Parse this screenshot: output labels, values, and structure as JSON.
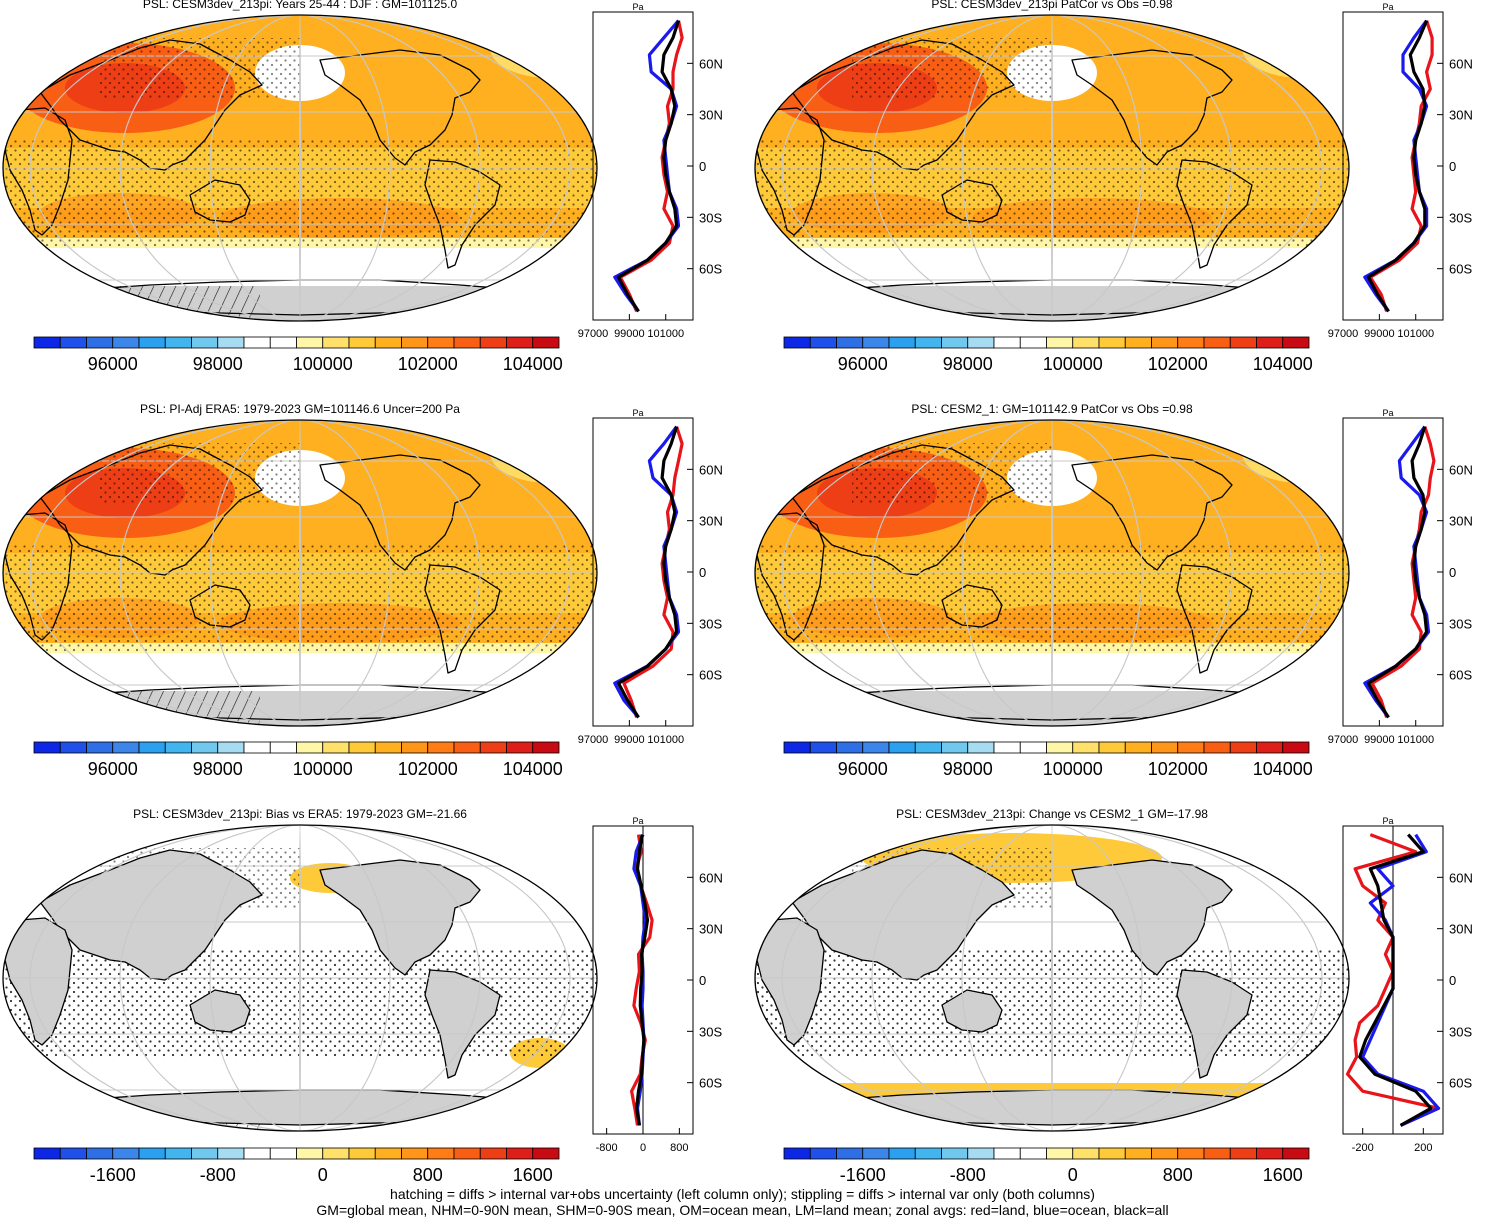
{
  "colors": {
    "land_gray": "#d0d0d0",
    "stipple": "#000000",
    "red_land": "#e8141a",
    "blue_ocean": "#1a1aee",
    "black_all": "#000000"
  },
  "colormap": [
    "#0c28e6",
    "#1f50ea",
    "#2e6fe6",
    "#3b86e8",
    "#2aa0ee",
    "#42b4ee",
    "#70c8ee",
    "#a6dcf2",
    "#ffffff",
    "#ffffff",
    "#fff6a8",
    "#ffe06a",
    "#ffca3a",
    "#ffb020",
    "#ff961a",
    "#ff7c16",
    "#f85e14",
    "#ee3e16",
    "#de1e18",
    "#c80a12"
  ],
  "abs_colorbar_labels": [
    "96000",
    "98000",
    "100000",
    "102000",
    "104000"
  ],
  "diff_colorbar_labels": [
    "-1600",
    "-800",
    "0",
    "800",
    "1600"
  ],
  "abs_zonal_ticks": [
    "97000",
    "99000",
    "101000"
  ],
  "lat_labels": [
    "60N",
    "30N",
    "0",
    "30S",
    "60S"
  ],
  "zonal_unit": "Pa",
  "panels": [
    {
      "title": "PSL: CESM3dev_213pi: Years 25-44 : DJF : GM=101125.0"
    },
    {
      "title": "PSL: CESM3dev_213pi PatCor vs Obs =0.98"
    },
    {
      "title": "PSL: PI-Adj ERA5: 1979-2023 GM=101146.6 Uncer=200 Pa"
    },
    {
      "title": "PSL: CESM2_1: GM=101142.9 PatCor vs Obs =0.98"
    },
    {
      "title": "PSL: CESM3dev_213pi: Bias vs ERA5: 1979-2023 GM=-21.66"
    },
    {
      "title": "PSL: CESM3dev_213pi: Change vs CESM2_1 GM=-17.98"
    }
  ],
  "diff_zonal_ticks_left": [
    "-800",
    "0",
    "800"
  ],
  "diff_zonal_ticks_right": [
    "-200",
    "200"
  ],
  "footer": {
    "line1": "hatching = diffs > internal var+obs uncertainty (left column only); stippling = diffs > internal var only (both columns)",
    "line2": "GM=global mean, NHM=0-90N mean, SHM=0-90S mean, OM=ocean mean, LM=land mean; zonal avgs: red=land, blue=ocean, black=all"
  },
  "chart_data": [
    {
      "type": "line",
      "title": "PSL: CESM3dev_213pi: Years 25-44 : DJF : GM=101125.0",
      "xlabel": "Pa",
      "xlim": [
        97000,
        102500
      ],
      "y_lat": [
        85,
        75,
        65,
        55,
        45,
        35,
        25,
        15,
        5,
        -5,
        -15,
        -25,
        -35,
        -45,
        -55,
        -65,
        -75,
        -85
      ],
      "series": [
        {
          "name": "red=land",
          "values": [
            101700,
            101900,
            101600,
            101400,
            101400,
            101100,
            101200,
            101000,
            100800,
            100900,
            101100,
            100900,
            101400,
            101200,
            100200,
            98500,
            99000,
            99400
          ]
        },
        {
          "name": "blue=ocean",
          "values": [
            101700,
            100900,
            100100,
            100200,
            101300,
            101600,
            101300,
            100900,
            101000,
            101100,
            101200,
            101600,
            101700,
            101000,
            100000,
            98200,
            98800,
            99500
          ]
        },
        {
          "name": "black=all",
          "values": [
            101700,
            101400,
            100900,
            100800,
            101300,
            101500,
            101300,
            101000,
            100900,
            101000,
            101200,
            101500,
            101600,
            101000,
            100000,
            98400,
            98900,
            99500
          ]
        }
      ]
    },
    {
      "type": "line",
      "title": "PSL: CESM3dev_213pi PatCor vs Obs =0.98",
      "xlabel": "Pa",
      "xlim": [
        97000,
        102500
      ],
      "y_lat": [
        85,
        75,
        65,
        55,
        45,
        35,
        25,
        15,
        5,
        -5,
        -15,
        -25,
        -35,
        -45,
        -55,
        -65,
        -75,
        -85
      ],
      "series": [
        {
          "name": "red=land",
          "values": [
            101600,
            101900,
            101900,
            101600,
            101800,
            101300,
            101200,
            101000,
            100800,
            100900,
            101000,
            100800,
            101300,
            101100,
            100100,
            98500,
            99100,
            99400
          ]
        },
        {
          "name": "blue=ocean",
          "values": [
            101600,
            100900,
            100300,
            100300,
            101200,
            101600,
            101300,
            100900,
            101000,
            101100,
            101200,
            101600,
            101600,
            100900,
            99900,
            98200,
            98800,
            99500
          ]
        },
        {
          "name": "black=all",
          "values": [
            101600,
            101200,
            100700,
            100900,
            101400,
            101500,
            101300,
            101000,
            100900,
            101000,
            101200,
            101500,
            101500,
            100900,
            99900,
            98400,
            98900,
            99500
          ]
        }
      ]
    },
    {
      "type": "line",
      "title": "PSL: PI-Adj ERA5: 1979-2023 GM=101146.6 Uncer=200 Pa",
      "xlabel": "Pa",
      "xlim": [
        97000,
        102500
      ],
      "y_lat": [
        85,
        75,
        65,
        55,
        45,
        35,
        25,
        15,
        5,
        -5,
        -15,
        -25,
        -35,
        -45,
        -55,
        -65,
        -75,
        -85
      ],
      "series": [
        {
          "name": "red=land",
          "values": [
            101600,
            101900,
            101700,
            101500,
            101400,
            101100,
            101200,
            101000,
            100800,
            100900,
            101100,
            100900,
            101400,
            101300,
            100300,
            98700,
            99100,
            99400
          ]
        },
        {
          "name": "blue=ocean",
          "values": [
            101600,
            100900,
            100100,
            100300,
            101300,
            101600,
            101300,
            100900,
            101000,
            101100,
            101200,
            101600,
            101700,
            101000,
            100000,
            98200,
            98700,
            99500
          ]
        },
        {
          "name": "black=all",
          "values": [
            101600,
            101300,
            100900,
            100800,
            101300,
            101500,
            101300,
            101000,
            100900,
            101000,
            101200,
            101500,
            101600,
            101000,
            100000,
            98400,
            98900,
            99500
          ]
        }
      ]
    },
    {
      "type": "line",
      "title": "PSL: CESM2_1: GM=101142.9 PatCor vs Obs =0.98",
      "xlabel": "Pa",
      "xlim": [
        97000,
        102500
      ],
      "y_lat": [
        85,
        75,
        65,
        55,
        45,
        35,
        25,
        15,
        5,
        -5,
        -15,
        -25,
        -35,
        -45,
        -55,
        -65,
        -75,
        -85
      ],
      "series": [
        {
          "name": "red=land",
          "values": [
            101500,
            101800,
            102000,
            101800,
            101700,
            101300,
            101200,
            101000,
            100800,
            100900,
            101000,
            100800,
            101300,
            101200,
            100200,
            98600,
            99100,
            99400
          ]
        },
        {
          "name": "blue=ocean",
          "values": [
            101500,
            100800,
            100100,
            100200,
            101200,
            101600,
            101300,
            100900,
            101000,
            101100,
            101200,
            101600,
            101700,
            101000,
            99900,
            98200,
            98800,
            99500
          ]
        },
        {
          "name": "black=all",
          "values": [
            101500,
            101200,
            100800,
            100900,
            101400,
            101500,
            101300,
            101000,
            100900,
            101000,
            101200,
            101500,
            101600,
            101000,
            99900,
            98400,
            98900,
            99500
          ]
        }
      ]
    },
    {
      "type": "line",
      "title": "PSL: CESM3dev_213pi: Bias vs ERA5: 1979-2023 GM=-21.66",
      "xlabel": "Pa",
      "xlim": [
        -1100,
        1100
      ],
      "y_lat": [
        85,
        75,
        65,
        55,
        45,
        35,
        25,
        15,
        5,
        -5,
        -15,
        -25,
        -35,
        -45,
        -55,
        -65,
        -75,
        -85
      ],
      "series": [
        {
          "name": "red=land",
          "values": [
            -100,
            -40,
            -150,
            -50,
            80,
            200,
            150,
            -100,
            -80,
            -150,
            -200,
            -50,
            50,
            -20,
            -60,
            -250,
            -180,
            -120
          ]
        },
        {
          "name": "blue=ocean",
          "values": [
            0,
            -150,
            -200,
            -50,
            0,
            50,
            0,
            -20,
            0,
            0,
            -20,
            0,
            20,
            0,
            -20,
            -60,
            -120,
            -80
          ]
        },
        {
          "name": "black=all",
          "values": [
            -20,
            -80,
            -120,
            -40,
            40,
            100,
            40,
            -30,
            -20,
            -50,
            -60,
            -20,
            20,
            -10,
            -30,
            -100,
            -140,
            -80
          ]
        }
      ]
    },
    {
      "type": "line",
      "title": "PSL: CESM3dev_213pi: Change vs CESM2_1 GM=-17.98",
      "xlabel": "Pa",
      "xlim": [
        -330,
        330
      ],
      "y_lat": [
        85,
        75,
        65,
        55,
        45,
        35,
        25,
        15,
        5,
        -5,
        -15,
        -25,
        -35,
        -45,
        -55,
        -65,
        -75,
        -85
      ],
      "series": [
        {
          "name": "red=land",
          "values": [
            -150,
            150,
            -250,
            -200,
            -50,
            -100,
            0,
            -50,
            0,
            -50,
            -100,
            -220,
            -250,
            -240,
            -300,
            -200,
            300,
            50
          ]
        },
        {
          "name": "blue=ocean",
          "values": [
            150,
            220,
            -100,
            0,
            -150,
            -50,
            0,
            0,
            0,
            0,
            -50,
            -100,
            -150,
            -200,
            -100,
            200,
            300,
            50
          ]
        },
        {
          "name": "black=all",
          "values": [
            100,
            200,
            -150,
            -100,
            -80,
            -60,
            0,
            0,
            0,
            0,
            -60,
            -120,
            -180,
            -220,
            -120,
            150,
            250,
            50
          ]
        }
      ]
    }
  ]
}
